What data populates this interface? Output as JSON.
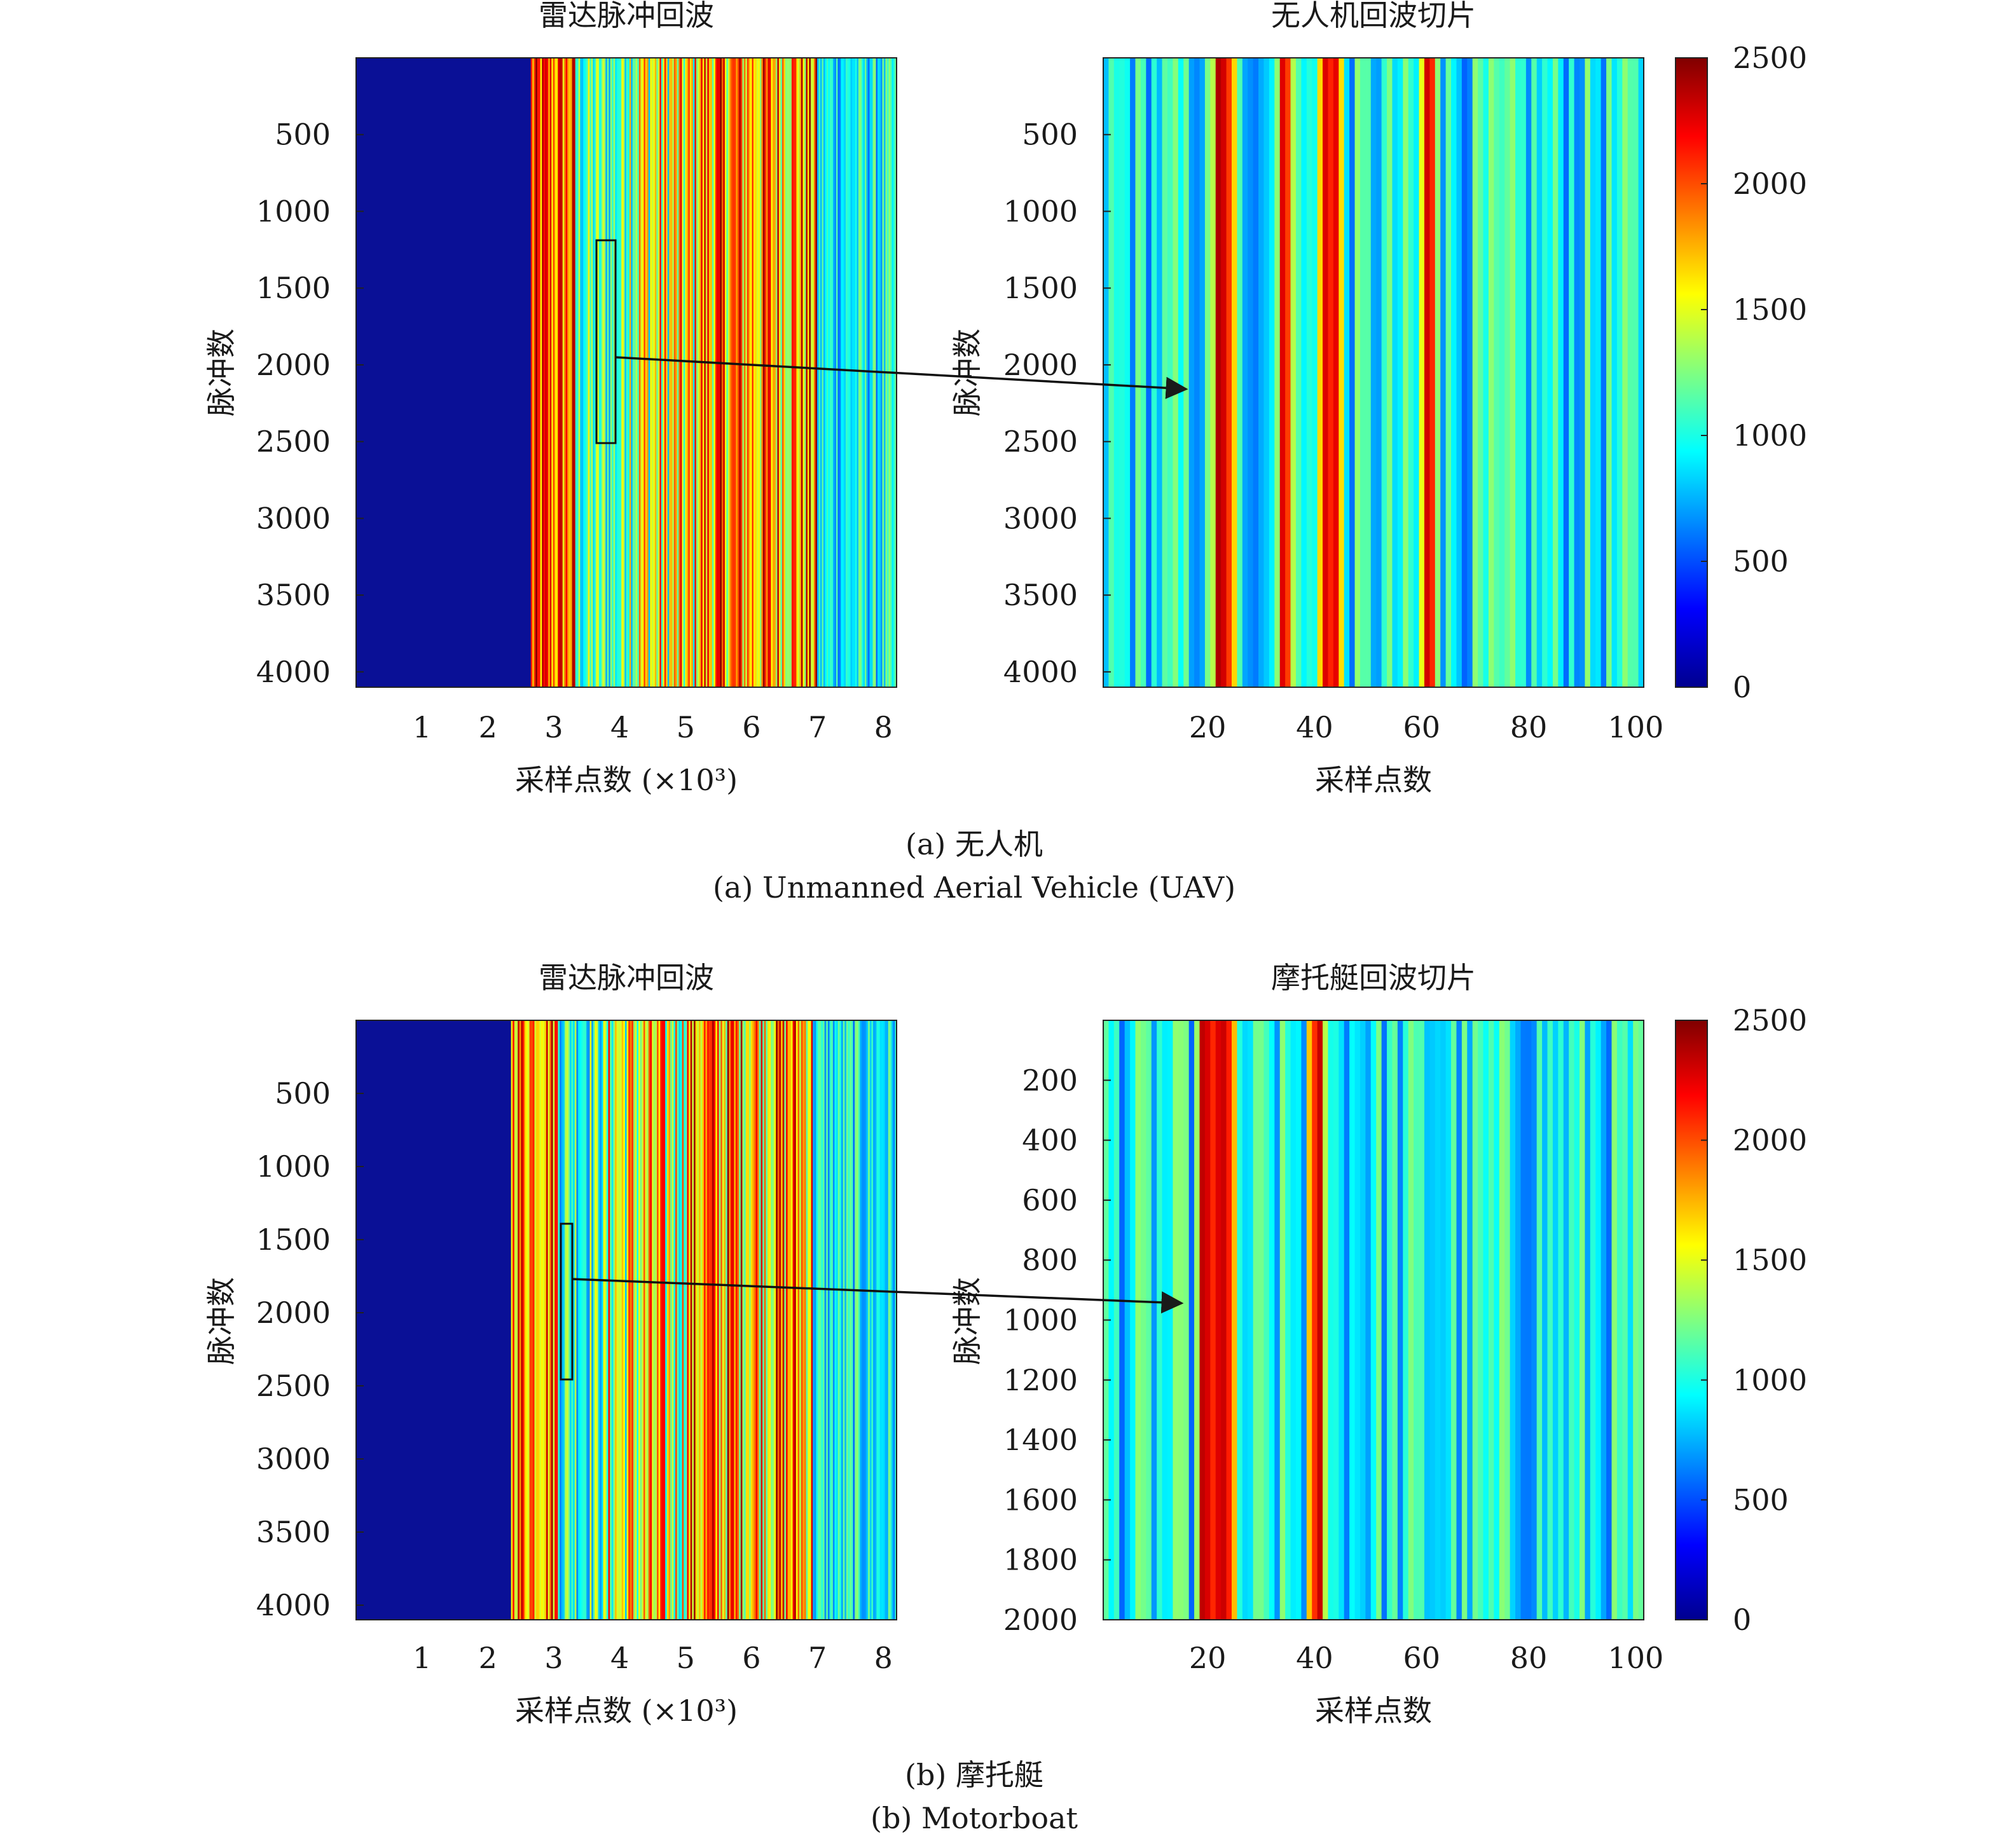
{
  "figure": {
    "caption_a_cn": "(a) 无人机",
    "caption_a_en": "(a) Unmanned Aerial Vehicle (UAV)",
    "caption_b_cn": "(b) 摩托艇",
    "caption_b_en": "(b) Motorboat"
  },
  "chart_data": [
    {
      "id": "a-left",
      "type": "heatmap",
      "title": "雷达脉冲回波",
      "xlabel": "采样点数 (×10³)",
      "ylabel": "脉冲数",
      "x_ticks": [
        1,
        2,
        3,
        4,
        5,
        6,
        7,
        8
      ],
      "y_ticks": [
        500,
        1000,
        1500,
        2000,
        2500,
        3000,
        3500,
        4000
      ],
      "xlim": [
        0,
        8.2
      ],
      "ylim": [
        0,
        4100
      ],
      "colormap": "jet",
      "clim": [
        0,
        2500
      ],
      "signal_start_x": 2.65,
      "slice_box": {
        "x0": 3.65,
        "x1": 3.95,
        "y0": 1180,
        "y1": 2500
      },
      "arrow_to": "a-right"
    },
    {
      "id": "a-right",
      "type": "heatmap",
      "title": "无人机回波切片",
      "xlabel": "采样点数",
      "ylabel": "脉冲数",
      "x_ticks": [
        20,
        40,
        60,
        80,
        100
      ],
      "y_ticks": [
        500,
        1000,
        1500,
        2000,
        2500,
        3000,
        3500,
        4000
      ],
      "xlim": [
        0.5,
        101.5
      ],
      "ylim": [
        0,
        4100
      ],
      "colormap": "jet",
      "clim": [
        0,
        2500
      ],
      "colorbar_ticks": [
        0,
        500,
        1000,
        1500,
        2000,
        2500
      ],
      "strong_columns": [
        22,
        23,
        24,
        34,
        35,
        42,
        43,
        44,
        61,
        62
      ]
    },
    {
      "id": "b-left",
      "type": "heatmap",
      "title": "雷达脉冲回波",
      "xlabel": "采样点数 (×10³)",
      "ylabel": "脉冲数",
      "x_ticks": [
        1,
        2,
        3,
        4,
        5,
        6,
        7,
        8
      ],
      "y_ticks": [
        500,
        1000,
        1500,
        2000,
        2500,
        3000,
        3500,
        4000
      ],
      "xlim": [
        0,
        8.2
      ],
      "ylim": [
        0,
        4100
      ],
      "colormap": "jet",
      "clim": [
        0,
        2500
      ],
      "signal_start_x": 2.35,
      "slice_box": {
        "x0": 3.1,
        "x1": 3.28,
        "y0": 1400,
        "y1": 2460
      },
      "arrow_to": "b-right"
    },
    {
      "id": "b-right",
      "type": "heatmap",
      "title": "摩托艇回波切片",
      "xlabel": "采样点数",
      "ylabel": "脉冲数",
      "x_ticks": [
        20,
        40,
        60,
        80,
        100
      ],
      "y_ticks": [
        200,
        400,
        600,
        800,
        1000,
        1200,
        1400,
        1600,
        1800,
        2000
      ],
      "xlim": [
        0.5,
        101.5
      ],
      "ylim": [
        0,
        2000
      ],
      "colormap": "jet",
      "clim": [
        0,
        2500
      ],
      "colorbar_ticks": [
        0,
        500,
        1000,
        1500,
        2000,
        2500
      ],
      "strong_columns": [
        19,
        20,
        21,
        22,
        23,
        24,
        40,
        41
      ]
    }
  ]
}
